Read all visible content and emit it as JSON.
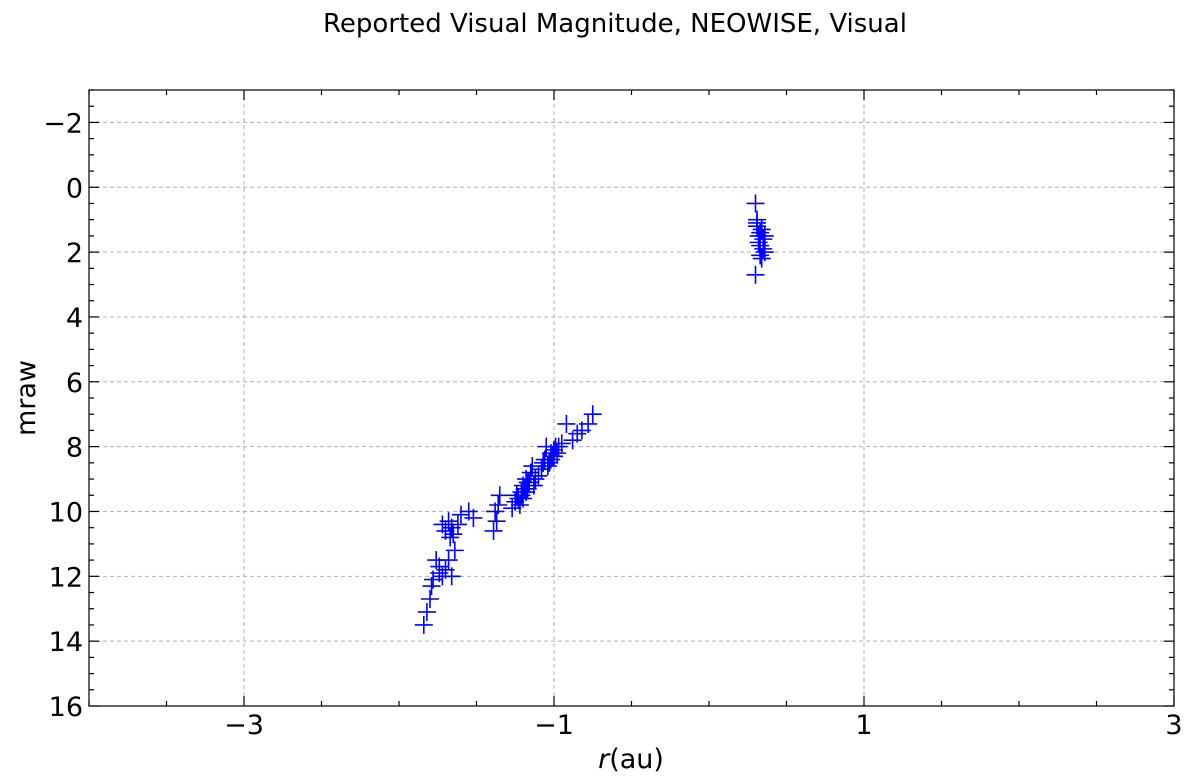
{
  "chart_data": {
    "type": "scatter",
    "title": "Reported Visual Magnitude, NEOWISE, Visual",
    "xlabel_var": "r",
    "xlabel_unit": "(au)",
    "ylabel": "mraw",
    "xlim": [
      -4.0,
      3.0
    ],
    "ylim": [
      16,
      -3
    ],
    "y_inverted": true,
    "grid": true,
    "x_major_ticks": [
      -3,
      -1,
      1,
      3
    ],
    "x_tick_labels": [
      "−3",
      "−1",
      "1",
      "3"
    ],
    "y_major_ticks": [
      -2,
      0,
      2,
      4,
      6,
      8,
      10,
      12,
      14,
      16
    ],
    "y_tick_labels": [
      "−2",
      "0",
      "2",
      "4",
      "6",
      "8",
      "10",
      "12",
      "14",
      "16"
    ],
    "marker": "+",
    "color": "#0000ff",
    "series": [
      {
        "x": [
          0.3,
          0.31,
          0.32,
          0.33,
          0.35,
          0.36,
          0.3,
          0.31,
          0.33,
          0.35,
          0.34,
          0.36,
          0.32,
          0.34,
          0.31,
          0.33,
          -0.75,
          -0.78,
          -0.82,
          -0.85,
          -0.88,
          -0.92,
          -0.95,
          -0.97,
          -0.98,
          -1.0,
          -1.01,
          -1.02,
          -1.03,
          -1.05,
          -1.06,
          -0.99,
          -1.0,
          -1.02,
          -1.04,
          -1.07,
          -1.08,
          -1.1,
          -1.12,
          -1.13,
          -1.15,
          -1.17,
          -1.18,
          -1.2,
          -1.21,
          -1.22,
          -1.16,
          -1.18,
          -1.19,
          -1.21,
          -1.23,
          -1.25,
          -1.27,
          -1.14,
          -1.17,
          -1.2,
          -1.24,
          -1.35,
          -1.36,
          -1.38,
          -1.37,
          -1.39,
          -1.55,
          -1.52,
          -1.6,
          -1.62,
          -1.65,
          -1.66,
          -1.68,
          -1.7,
          -1.67,
          -1.72,
          -1.64,
          -1.68,
          -1.7,
          -1.72,
          -1.74,
          -1.76,
          -1.78,
          -1.79,
          -1.8,
          -1.82,
          -1.84,
          -1.66,
          -1.74
        ],
        "y": [
          0.5,
          1.0,
          1.5,
          1.8,
          1.6,
          2.0,
          2.7,
          1.2,
          1.4,
          1.9,
          2.2,
          1.5,
          1.7,
          1.3,
          1.1,
          2.1,
          7.0,
          7.3,
          7.5,
          7.6,
          7.8,
          7.3,
          7.9,
          8.0,
          8.2,
          8.1,
          8.3,
          8.2,
          8.5,
          8.0,
          8.4,
          8.0,
          8.3,
          8.4,
          8.6,
          8.5,
          8.7,
          8.9,
          9.0,
          9.2,
          8.8,
          9.3,
          9.4,
          9.6,
          9.5,
          9.8,
          9.1,
          9.0,
          9.3,
          9.4,
          9.6,
          9.7,
          9.9,
          8.6,
          9.1,
          9.2,
          9.5,
          9.5,
          9.8,
          10.0,
          10.3,
          10.6,
          10.0,
          10.2,
          10.1,
          10.4,
          10.7,
          10.5,
          10.3,
          10.6,
          10.8,
          10.4,
          11.2,
          11.5,
          11.8,
          12.0,
          11.7,
          11.5,
          12.1,
          12.3,
          12.7,
          13.1,
          13.5,
          12.0,
          11.9
        ]
      }
    ]
  }
}
